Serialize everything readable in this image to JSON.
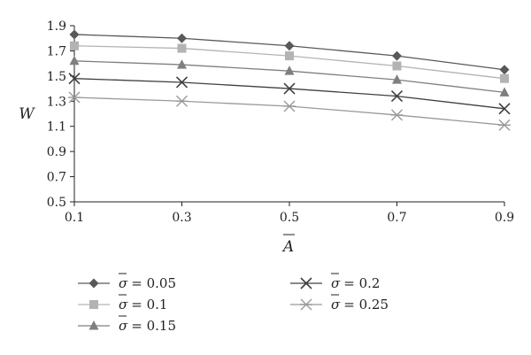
{
  "chart_data": {
    "type": "line",
    "xlabel": "A",
    "ylabel": "W",
    "x": [
      0.1,
      0.3,
      0.5,
      0.7,
      0.9
    ],
    "x_ticks": [
      "0.1",
      "0.3",
      "0.5",
      "0.7",
      "0.9"
    ],
    "y_ticks": [
      "0.5",
      "0.7",
      "0.9",
      "1.1",
      "1.3",
      "1.5",
      "1.7",
      "1.9"
    ],
    "xlim": [
      0.1,
      0.9
    ],
    "ylim": [
      0.5,
      1.9
    ],
    "grid": false,
    "legend_position": "bottom",
    "legend_symbol": "σ",
    "series": [
      {
        "name": "σ = 0.05",
        "value_label": "= 0.05",
        "marker": "diamond",
        "color": "#595959",
        "values": [
          1.83,
          1.8,
          1.74,
          1.66,
          1.55
        ]
      },
      {
        "name": "σ = 0.1",
        "value_label": "= 0.1",
        "marker": "square",
        "color": "#b3b3b3",
        "values": [
          1.74,
          1.72,
          1.66,
          1.58,
          1.48
        ]
      },
      {
        "name": "σ = 0.15",
        "value_label": "= 0.15",
        "marker": "triangle",
        "color": "#7f7f7f",
        "values": [
          1.62,
          1.59,
          1.54,
          1.47,
          1.37
        ]
      },
      {
        "name": "σ = 0.2",
        "value_label": "= 0.2",
        "marker": "x",
        "color": "#404040",
        "values": [
          1.48,
          1.45,
          1.4,
          1.34,
          1.24
        ]
      },
      {
        "name": "σ = 0.25",
        "value_label": "= 0.25",
        "marker": "asterisk",
        "color": "#999999",
        "values": [
          1.33,
          1.3,
          1.26,
          1.19,
          1.11
        ]
      }
    ]
  }
}
